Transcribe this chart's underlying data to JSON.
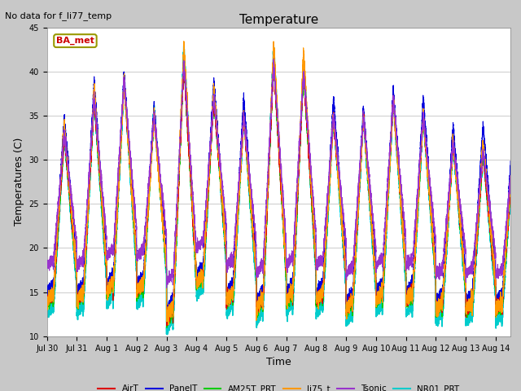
{
  "title": "Temperature",
  "note": "No data for f_li77_temp",
  "xlabel": "Time",
  "ylabel": "Temperatures (C)",
  "ylim": [
    10,
    45
  ],
  "xlim_days": 15.5,
  "fig_facecolor": "#c8c8c8",
  "plot_facecolor": "#ffffff",
  "series": [
    {
      "name": "AirT",
      "color": "#dd0000",
      "lw": 0.8,
      "zorder": 5
    },
    {
      "name": "PanelT",
      "color": "#0000dd",
      "lw": 0.8,
      "zorder": 4
    },
    {
      "name": "AM25T_PRT",
      "color": "#00cc00",
      "lw": 1.0,
      "zorder": 3
    },
    {
      "name": "li75_t",
      "color": "#ff9900",
      "lw": 0.8,
      "zorder": 6
    },
    {
      "name": "Tsonic",
      "color": "#9933cc",
      "lw": 0.8,
      "zorder": 7
    },
    {
      "name": "NR01_PRT",
      "color": "#00cccc",
      "lw": 1.2,
      "zorder": 2
    }
  ],
  "x_tick_labels": [
    "Jul 30",
    "Jul 31",
    "Aug 1",
    "Aug 2",
    "Aug 3",
    "Aug 4",
    "Aug 5",
    "Aug 6",
    "Aug 7",
    "Aug 8",
    "Aug 9",
    "Aug 10",
    "Aug 11",
    "Aug 12",
    "Aug 13",
    "Aug 14"
  ],
  "x_tick_positions": [
    0,
    1,
    2,
    3,
    4,
    5,
    6,
    7,
    8,
    9,
    10,
    11,
    12,
    13,
    14,
    15
  ],
  "yticks": [
    10,
    15,
    20,
    25,
    30,
    35,
    40,
    45
  ],
  "legend_label": "BA_met",
  "legend_edge_color": "#999900",
  "legend_text_color": "#cc0000",
  "note_fontsize": 8,
  "title_fontsize": 11,
  "axis_label_fontsize": 9,
  "tick_fontsize": 7
}
